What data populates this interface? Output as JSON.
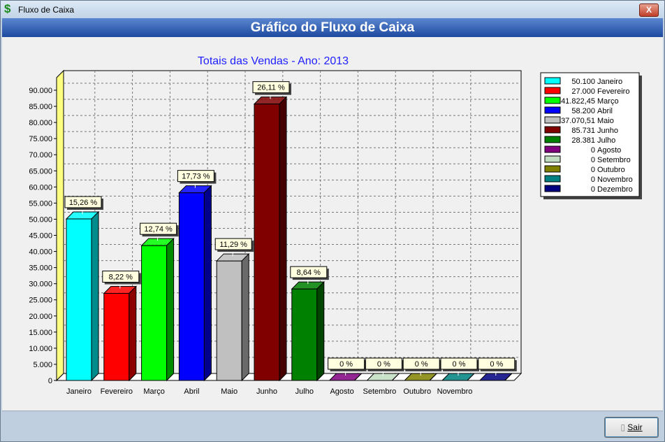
{
  "window": {
    "title": "Fluxo de Caixa",
    "icon": "dollar-icon",
    "close_label": "X"
  },
  "header": {
    "title": "Gráfico do Fluxo de Caixa"
  },
  "footer": {
    "exit_label": "Sair",
    "exit_icon": "door-exit-icon"
  },
  "chart_data": {
    "type": "bar",
    "title": "Totais das Vendas - Ano: 2013",
    "categories": [
      "Janeiro",
      "Fevereiro",
      "Março",
      "Abril",
      "Maio",
      "Junho",
      "Julho",
      "Agosto",
      "Setembro",
      "Outubro",
      "Novembro",
      "Dezembro"
    ],
    "x_tick_labels": [
      "Janeiro",
      "Fevereiro",
      "Março",
      "Abril",
      "Maio",
      "Junho",
      "Julho",
      "Agosto",
      "Setembro",
      "Outubro",
      "Novembro"
    ],
    "values": [
      50100,
      27000,
      41822.45,
      58200,
      37070.51,
      85731,
      28381,
      0,
      0,
      0,
      0,
      0
    ],
    "data_labels": [
      "15,26 %",
      "8,22 %",
      "12,74 %",
      "17,73 %",
      "11,29 %",
      "26,11 %",
      "8,64 %",
      "0 %",
      "0 %",
      "0 %",
      "0 %",
      "0 %"
    ],
    "colors": [
      "#00ffff",
      "#ff0000",
      "#00ff00",
      "#0000ff",
      "#c0c0c0",
      "#800000",
      "#008000",
      "#800080",
      "#c0dcc0",
      "#808000",
      "#008080",
      "#000080"
    ],
    "legend": [
      "50.100 Janeiro",
      "27.000 Fevereiro",
      "41.822,45 Março",
      "58.200 Abril",
      "37.070,51 Maio",
      "85.731 Junho",
      "28.381 Julho",
      "0 Agosto",
      "0 Setembro",
      "0 Outubro",
      "0 Novembro",
      "0 Dezembro"
    ],
    "legend_position": "right",
    "y_ticks": [
      "0",
      "5.000",
      "10.000",
      "15.000",
      "20.000",
      "25.000",
      "30.000",
      "35.000",
      "40.000",
      "45.000",
      "50.000",
      "55.000",
      "60.000",
      "65.000",
      "70.000",
      "75.000",
      "80.000",
      "85.000",
      "90.000"
    ],
    "ylim": [
      0,
      90000
    ],
    "grid": true,
    "style": "3d"
  }
}
